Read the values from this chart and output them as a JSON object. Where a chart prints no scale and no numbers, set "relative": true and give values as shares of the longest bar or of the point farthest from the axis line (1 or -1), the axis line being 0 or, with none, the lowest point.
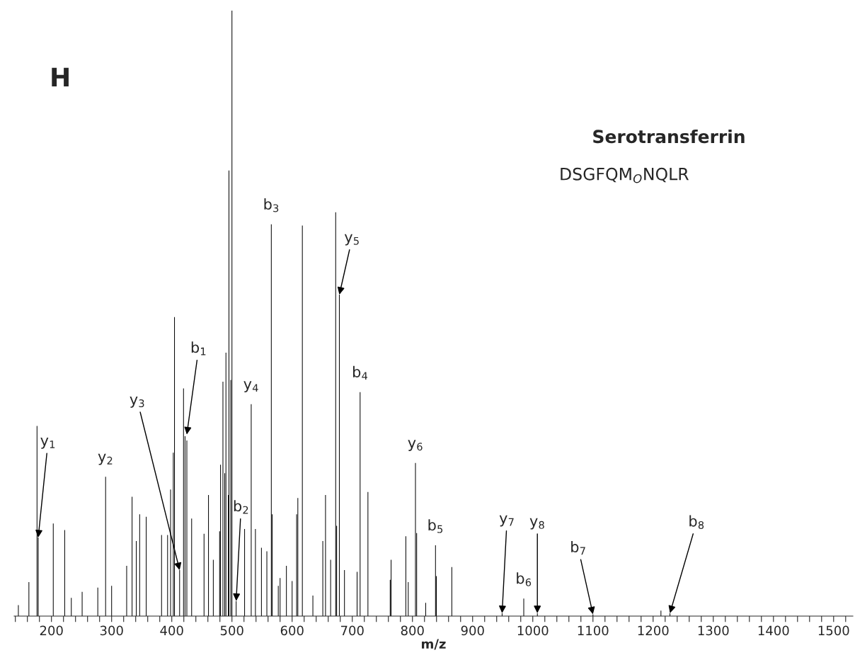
{
  "chart_data": {
    "type": "bar",
    "relative": true,
    "color": "#000000",
    "xlabel": "m/z",
    "x": [
      145,
      162.5,
      176,
      178,
      203,
      222,
      233,
      251,
      277,
      290,
      300,
      325,
      334,
      341,
      346.6,
      357.5,
      383,
      393,
      398,
      402.5,
      404.5,
      413,
      419.5,
      422,
      425,
      433,
      453.6,
      461,
      469,
      479.5,
      481,
      485,
      488,
      490,
      494,
      495,
      498,
      500,
      507,
      521,
      532,
      539,
      549,
      558,
      565.4,
      567,
      577,
      580,
      590.5,
      600,
      607.5,
      609.5,
      617,
      634.5,
      651,
      655.5,
      664,
      672.4,
      674,
      678.5,
      687,
      708,
      713,
      726,
      763,
      764.5,
      789,
      793,
      805,
      807,
      822,
      838.3,
      839.7,
      865.4,
      949,
      985,
      1007.6,
      1100,
      1213,
      1228
    ],
    "values": [
      0.018,
      0.056,
      0.314,
      0.13,
      0.153,
      0.142,
      0.03,
      0.04,
      0.047,
      0.23,
      0.05,
      0.083,
      0.197,
      0.124,
      0.168,
      0.164,
      0.134,
      0.134,
      0.209,
      0.27,
      0.494,
      0.076,
      0.376,
      0.297,
      0.29,
      0.161,
      0.136,
      0.2,
      0.093,
      0.14,
      0.25,
      0.387,
      0.236,
      0.435,
      0.2,
      0.736,
      0.39,
      1.0,
      0.025,
      0.144,
      0.35,
      0.144,
      0.113,
      0.107,
      0.647,
      0.168,
      0.05,
      0.063,
      0.083,
      0.058,
      0.168,
      0.195,
      0.645,
      0.034,
      0.124,
      0.2,
      0.093,
      0.667,
      0.149,
      0.531,
      0.076,
      0.073,
      0.37,
      0.205,
      0.06,
      0.093,
      0.132,
      0.056,
      0.253,
      0.137,
      0.022,
      0.117,
      0.066,
      0.081,
      0.005,
      0.029,
      0.005,
      0.003,
      0.009,
      0.005
    ],
    "xlim": [
      138,
      1532
    ],
    "xticks": [
      {
        "value": 140,
        "label": null
      },
      {
        "value": 160,
        "label": null
      },
      {
        "value": 180,
        "label": null
      },
      200,
      {
        "value": 220,
        "label": null
      },
      {
        "value": 240,
        "label": null
      },
      {
        "value": 260,
        "label": null
      },
      {
        "value": 280,
        "label": null
      },
      300,
      {
        "value": 320,
        "label": null
      },
      {
        "value": 340,
        "label": null
      },
      {
        "value": 360,
        "label": null
      },
      {
        "value": 380,
        "label": null
      },
      400,
      {
        "value": 420,
        "label": null
      },
      {
        "value": 440,
        "label": null
      },
      {
        "value": 460,
        "label": null
      },
      {
        "value": 480,
        "label": null
      },
      500,
      {
        "value": 520,
        "label": null
      },
      {
        "value": 540,
        "label": null
      },
      {
        "value": 560,
        "label": null
      },
      {
        "value": 580,
        "label": null
      },
      600,
      {
        "value": 620,
        "label": null
      },
      {
        "value": 640,
        "label": null
      },
      {
        "value": 660,
        "label": null
      },
      {
        "value": 680,
        "label": null
      },
      700,
      {
        "value": 720,
        "label": null
      },
      {
        "value": 740,
        "label": null
      },
      {
        "value": 760,
        "label": null
      },
      {
        "value": 780,
        "label": null
      },
      800,
      {
        "value": 820,
        "label": null
      },
      {
        "value": 840,
        "label": null
      },
      {
        "value": 860,
        "label": null
      },
      {
        "value": 880,
        "label": null
      },
      900,
      {
        "value": 920,
        "label": null
      },
      {
        "value": 940,
        "label": null
      },
      {
        "value": 960,
        "label": null
      },
      {
        "value": 980,
        "label": null
      },
      1000,
      {
        "value": 1020,
        "label": null
      },
      {
        "value": 1040,
        "label": null
      },
      {
        "value": 1060,
        "label": null
      },
      {
        "value": 1080,
        "label": null
      },
      1100,
      {
        "value": 1120,
        "label": null
      },
      {
        "value": 1140,
        "label": null
      },
      {
        "value": 1160,
        "label": null
      },
      {
        "value": 1180,
        "label": null
      },
      1200,
      {
        "value": 1220,
        "label": null
      },
      {
        "value": 1240,
        "label": null
      },
      {
        "value": 1260,
        "label": null
      },
      {
        "value": 1280,
        "label": null
      },
      1300,
      {
        "value": 1320,
        "label": null
      },
      {
        "value": 1340,
        "label": null
      },
      {
        "value": 1360,
        "label": null
      },
      {
        "value": 1380,
        "label": null
      },
      1400,
      {
        "value": 1420,
        "label": null
      },
      {
        "value": 1440,
        "label": null
      },
      {
        "value": 1460,
        "label": null
      },
      {
        "value": 1480,
        "label": null
      },
      1500,
      {
        "value": 1520,
        "label": null
      }
    ],
    "grid": false,
    "legend": false,
    "annotations": [
      "H",
      "Serotransferrin",
      "DSGFQM$_{O}$NQLR",
      {
        "text": "y$_{1}$",
        "x": 178,
        "y": 0.13
      },
      {
        "text": "y$_{2}$",
        "x": 290,
        "y": 0.23
      },
      {
        "text": "y$_{3}$",
        "x": 413,
        "y": 0.076
      },
      {
        "text": "b$_{1}$",
        "x": 425,
        "y": 0.3
      },
      {
        "text": "b$_{2}$",
        "x": 507,
        "y": 0.025
      },
      {
        "text": "y$_{4}$",
        "x": 532,
        "y": 0.35
      },
      {
        "text": "b$_{3}$",
        "x": 565.4,
        "y": 0.647
      },
      {
        "text": "y$_{5}$",
        "x": 678.5,
        "y": 0.531
      },
      {
        "text": "b$_{4}$",
        "x": 713,
        "y": 0.37
      },
      {
        "text": "y$_{6}$",
        "x": 805,
        "y": 0.253
      },
      {
        "text": "b$_{5}$",
        "x": 838.3,
        "y": 0.117
      },
      {
        "text": "y$_{7}$",
        "x": 949,
        "y": 0.005
      },
      {
        "text": "b$_{6}$",
        "x": 985,
        "y": 0.029
      },
      {
        "text": "y$_{8}$",
        "x": 1007.6,
        "y": 0.005
      },
      {
        "text": "b$_{7}$",
        "x": 1100,
        "y": 0.003
      },
      {
        "text": "b$_{8}$",
        "x": 1228,
        "y": 0.005
      }
    ]
  }
}
